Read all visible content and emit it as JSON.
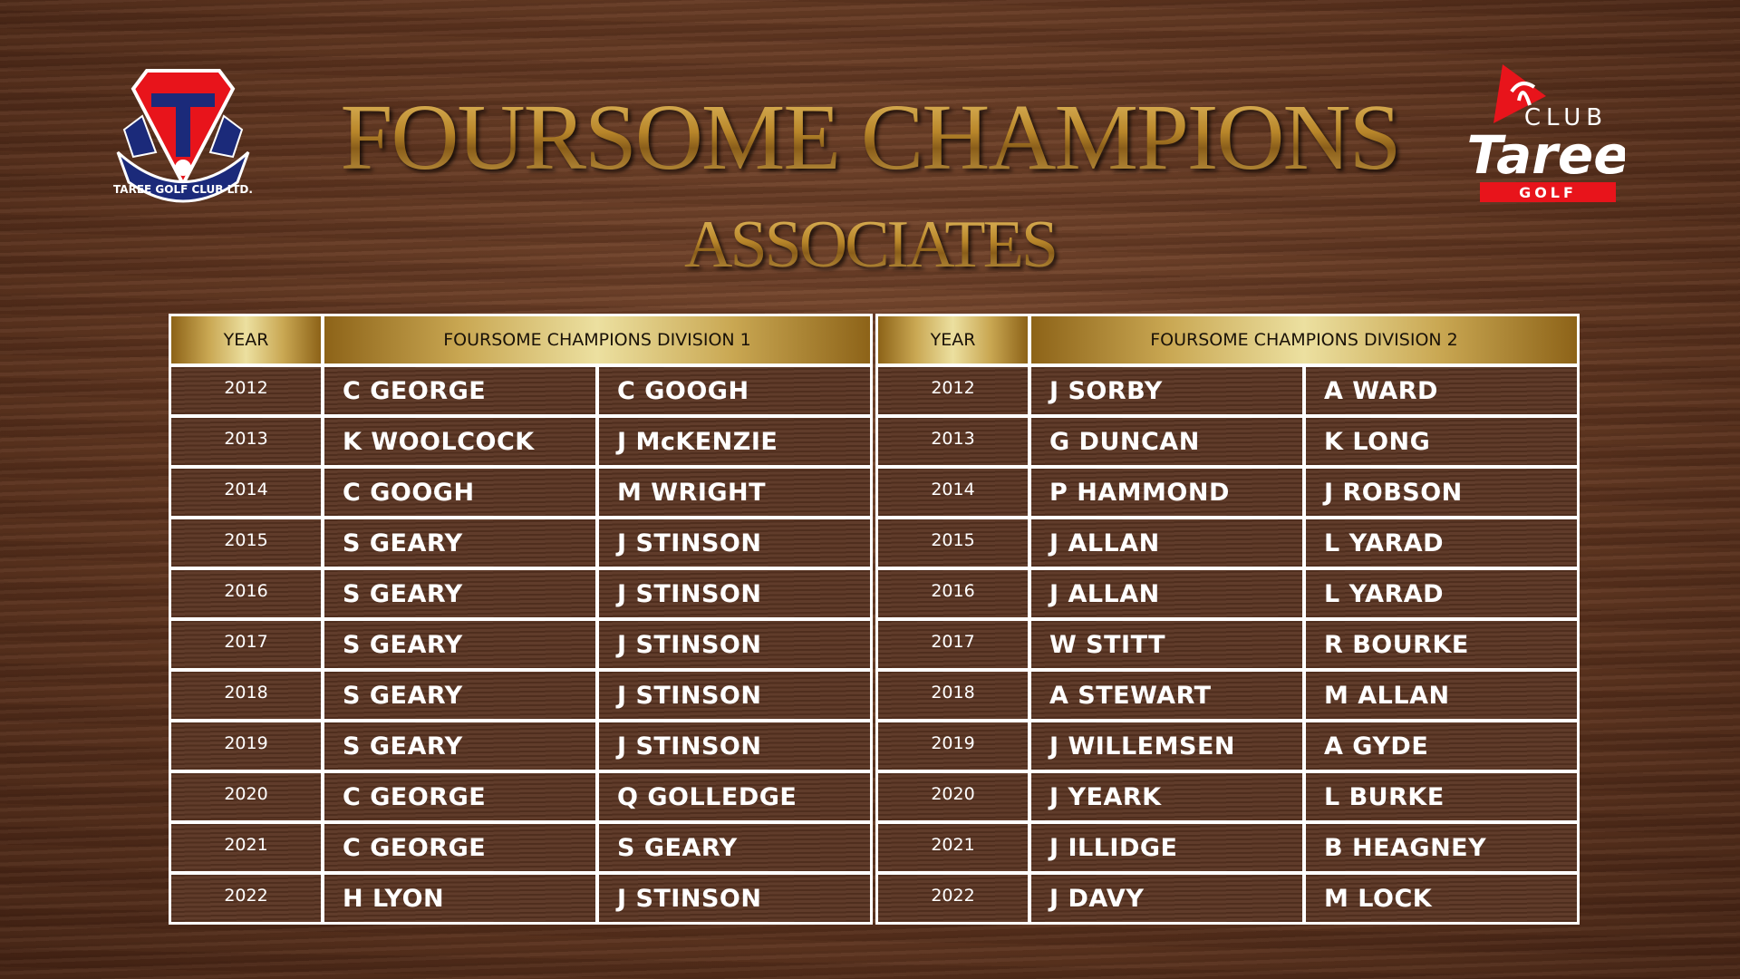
{
  "title": "FOURSOME CHAMPIONS",
  "subtitle": "ASSOCIATES",
  "logos": {
    "left": "TAREE GOLF CLUB LTD.",
    "right": {
      "line1": "CLUB",
      "line2": "Taree",
      "line3": "GOLF"
    }
  },
  "colors": {
    "gold": "#c4973d",
    "red": "#e8141b",
    "navy": "#1b2a7a",
    "wood": "#5a3422"
  },
  "division1": {
    "year_header": "YEAR",
    "header": "FOURSOME CHAMPIONS DIVISION 1",
    "rows": [
      [
        "2012",
        "C GEORGE",
        "C GOOGH"
      ],
      [
        "2013",
        "K WOOLCOCK",
        "J McKENZIE"
      ],
      [
        "2014",
        "C GOOGH",
        "M WRIGHT"
      ],
      [
        "2015",
        "S GEARY",
        "J STINSON"
      ],
      [
        "2016",
        "S GEARY",
        "J STINSON"
      ],
      [
        "2017",
        "S GEARY",
        "J STINSON"
      ],
      [
        "2018",
        "S GEARY",
        "J STINSON"
      ],
      [
        "2019",
        "S GEARY",
        "J STINSON"
      ],
      [
        "2020",
        "C GEORGE",
        "Q GOLLEDGE"
      ],
      [
        "2021",
        "C GEORGE",
        "S GEARY"
      ],
      [
        "2022",
        "H LYON",
        "J STINSON"
      ]
    ]
  },
  "division2": {
    "year_header": "YEAR",
    "header": "FOURSOME CHAMPIONS DIVISION 2",
    "rows": [
      [
        "2012",
        "J SORBY",
        "A WARD"
      ],
      [
        "2013",
        "G DUNCAN",
        "K LONG"
      ],
      [
        "2014",
        "P HAMMOND",
        "J ROBSON"
      ],
      [
        "2015",
        "J ALLAN",
        "L YARAD"
      ],
      [
        "2016",
        "J ALLAN",
        "L YARAD"
      ],
      [
        "2017",
        "W STITT",
        "R BOURKE"
      ],
      [
        "2018",
        "A STEWART",
        "M ALLAN"
      ],
      [
        "2019",
        "J WILLEMSEN",
        "A GYDE"
      ],
      [
        "2020",
        "J YEARK",
        "L BURKE"
      ],
      [
        "2021",
        "J ILLIDGE",
        "B HEAGNEY"
      ],
      [
        "2022",
        "J DAVY",
        "M LOCK"
      ]
    ]
  }
}
